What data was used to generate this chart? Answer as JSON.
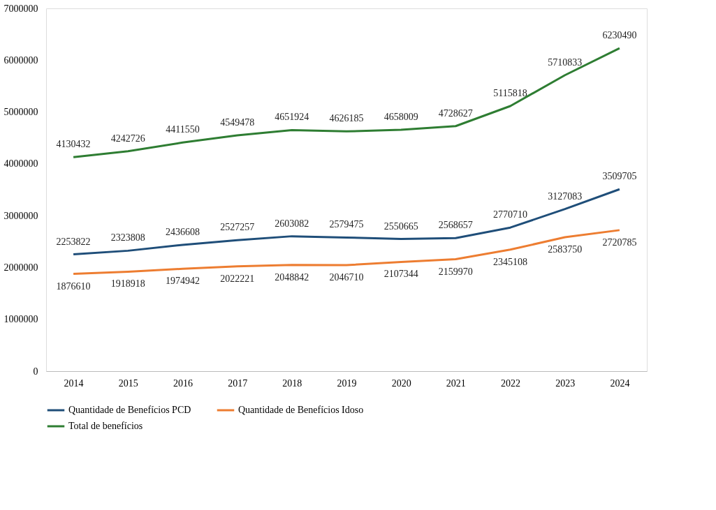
{
  "chart_data": {
    "type": "line",
    "categories": [
      "2014",
      "2015",
      "2016",
      "2017",
      "2018",
      "2019",
      "2020",
      "2021",
      "2022",
      "2023",
      "2024"
    ],
    "series": [
      {
        "name": "Quantidade de Benefícios PCD",
        "color": "#1f4e79",
        "values": [
          2253822,
          2323808,
          2436608,
          2527257,
          2603082,
          2579475,
          2550665,
          2568657,
          2770710,
          3127083,
          3509705
        ]
      },
      {
        "name": "Quantidade de Benefícios Idoso",
        "color": "#ed7d31",
        "values": [
          1876610,
          1918918,
          1974942,
          2022221,
          2048842,
          2046710,
          2107344,
          2159970,
          2345108,
          2583750,
          2720785
        ]
      },
      {
        "name": "Total de benefícios",
        "color": "#2e7d32",
        "values": [
          4130432,
          4242726,
          4411550,
          4549478,
          4651924,
          4626185,
          4658009,
          4728627,
          5115818,
          5710833,
          6230490
        ]
      }
    ],
    "ylim": [
      0,
      7000000
    ],
    "yticks": [
      0,
      1000000,
      2000000,
      3000000,
      4000000,
      5000000,
      6000000,
      7000000
    ],
    "data_labels": true,
    "legend": "bottom",
    "grid": false,
    "marker": "none",
    "line_style": "solid"
  }
}
